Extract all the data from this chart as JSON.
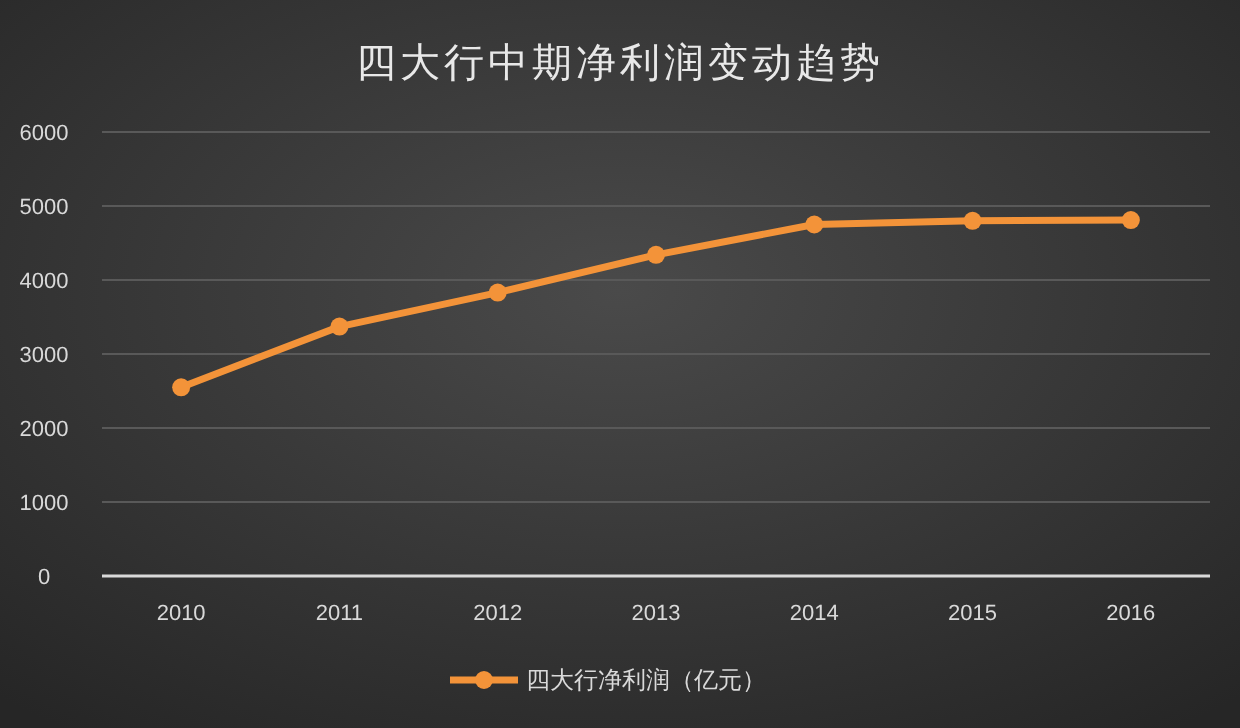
{
  "chart_data": {
    "type": "line",
    "title": "四大行中期净利润变动趋势",
    "categories": [
      "2010",
      "2011",
      "2012",
      "2013",
      "2014",
      "2015",
      "2016"
    ],
    "series": [
      {
        "name": "四大行净利润（亿元）",
        "color": "#f39339",
        "values": [
          2550,
          3370,
          3830,
          4340,
          4750,
          4800,
          4810
        ]
      }
    ],
    "ylim": [
      0,
      6000
    ],
    "yticks": [
      0,
      1000,
      2000,
      3000,
      4000,
      5000,
      6000
    ],
    "grid": "y",
    "legend": "bottom",
    "marker": "circle",
    "line_style": "solid"
  }
}
